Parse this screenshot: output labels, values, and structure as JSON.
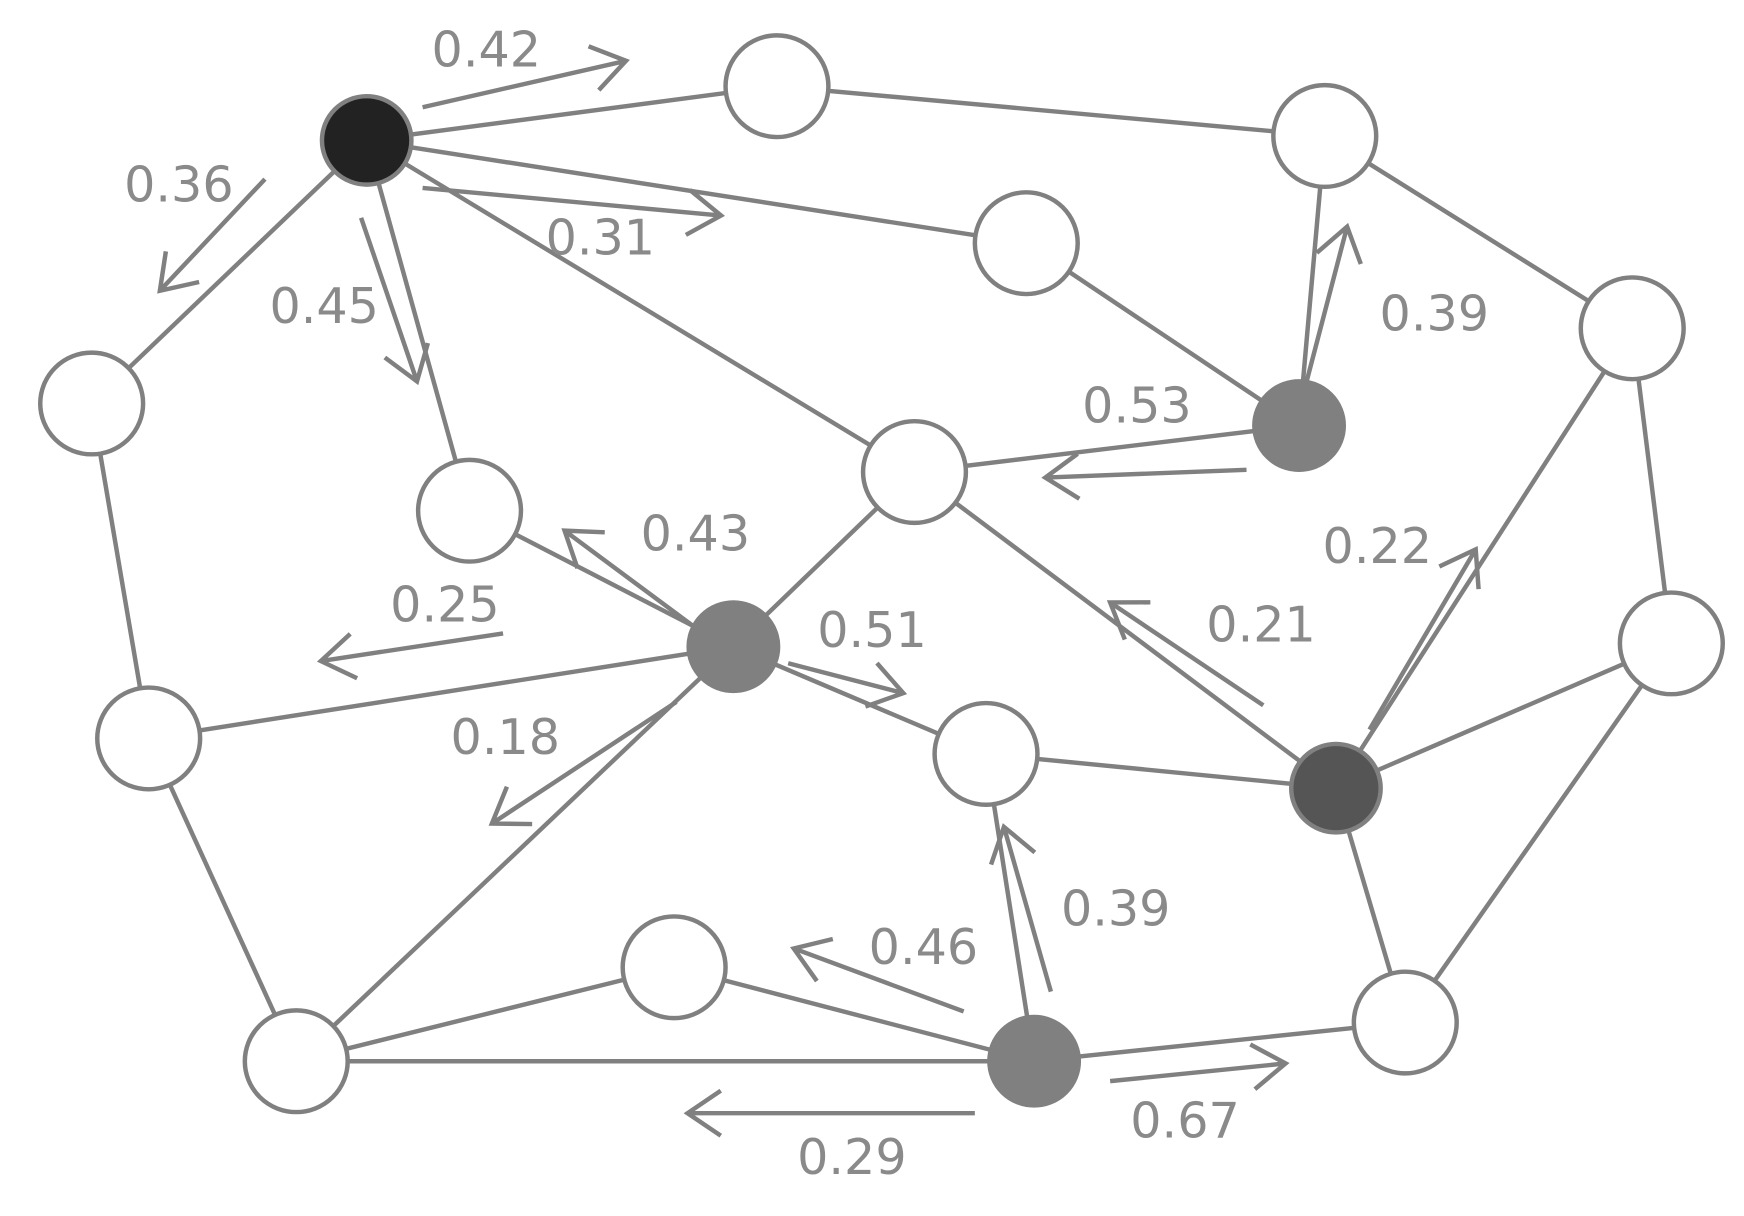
{
  "edges": [
    {
      "weight": 0.42
    },
    {
      "weight": 0.36
    },
    {
      "weight": 0.31
    },
    {
      "weight": 0.45
    },
    {
      "weight": 0.39
    },
    {
      "weight": 0.53
    },
    {
      "weight": 0.43
    },
    {
      "weight": 0.25
    },
    {
      "weight": 0.51
    },
    {
      "weight": 0.18
    },
    {
      "weight": 0.21
    },
    {
      "weight": 0.22
    },
    {
      "weight": 0.39
    },
    {
      "weight": 0.46
    },
    {
      "weight": 0.29
    },
    {
      "weight": 0.67
    }
  ]
}
